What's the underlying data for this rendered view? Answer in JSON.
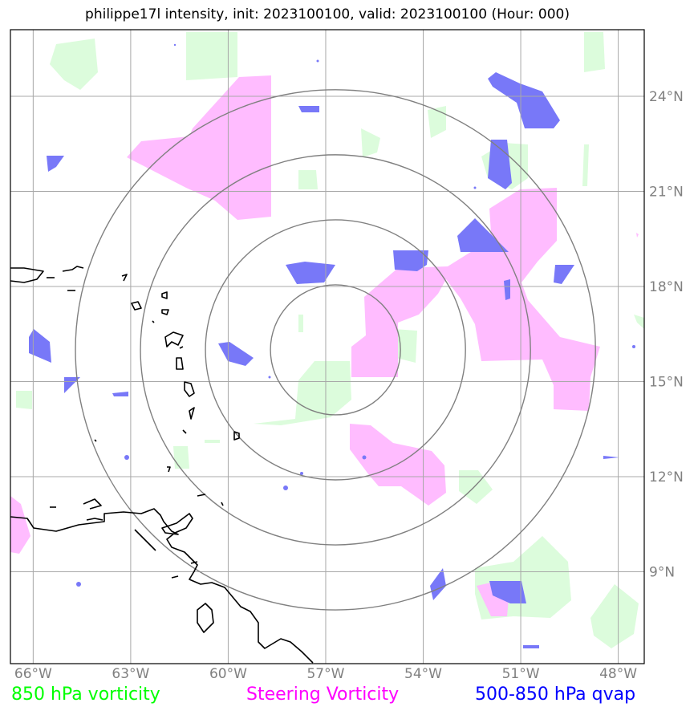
{
  "title": "philippe17l intensity, init: 2023100100, valid: 2023100100 (Hour: 000)",
  "map": {
    "lon_range": [
      -66.7,
      -47.2
    ],
    "lat_range": [
      6.1,
      26.1
    ],
    "center": {
      "lon": -56.7,
      "lat": 16.0
    },
    "range_rings_deg": [
      2,
      4,
      6,
      8
    ],
    "lon_ticks": [
      {
        "value": -66,
        "label": "66°W"
      },
      {
        "value": -63,
        "label": "63°W"
      },
      {
        "value": -60,
        "label": "60°W"
      },
      {
        "value": -57,
        "label": "57°W"
      },
      {
        "value": -54,
        "label": "54°W"
      },
      {
        "value": -51,
        "label": "51°W"
      },
      {
        "value": -48,
        "label": "48°W"
      }
    ],
    "lat_ticks": [
      {
        "value": 9,
        "label": "9°N"
      },
      {
        "value": 12,
        "label": "12°N"
      },
      {
        "value": 15,
        "label": "15°N"
      },
      {
        "value": 18,
        "label": "18°N"
      },
      {
        "value": 21,
        "label": "21°N"
      },
      {
        "value": 24,
        "label": "24°N"
      }
    ]
  },
  "legend": [
    {
      "label": "850 hPa vorticity",
      "color": "#00ff00"
    },
    {
      "label": "Steering Vorticity",
      "color": "#ff00ff"
    },
    {
      "label": "500-850 hPa qvap",
      "color": "#0000ff"
    }
  ],
  "layer_colors": {
    "vorticity_850": "#dcfcdc",
    "steering_vorticity": "#ffbcff",
    "qvap": "#7878f8",
    "coastline": "#000000",
    "gridline": "#a8a8a8",
    "ring": "#808080"
  }
}
